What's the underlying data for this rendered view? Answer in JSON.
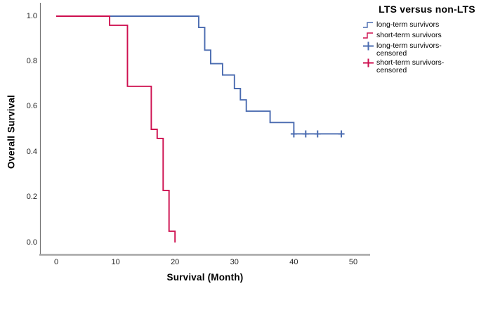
{
  "chart_data": {
    "type": "line",
    "subtype": "kaplan_meier_step",
    "title": "LTS versus non-LTS",
    "xlabel": "Survival (Month)",
    "ylabel": "Overall Survival",
    "xlim": [
      0,
      50
    ],
    "ylim": [
      0.0,
      1.0
    ],
    "xticks": [
      "0",
      "10",
      "20",
      "30",
      "40",
      "50"
    ],
    "yticks": [
      "1.0",
      "0.8",
      "0.6",
      "0.4",
      "0.2",
      "0.0"
    ],
    "grid": false,
    "legend_position": "top-right",
    "series": [
      {
        "name": "long-term survivors",
        "color": "#4A6BB0",
        "steps": [
          [
            0,
            1.0
          ],
          [
            24,
            0.95
          ],
          [
            25,
            0.85
          ],
          [
            26,
            0.79
          ],
          [
            28,
            0.74
          ],
          [
            30,
            0.68
          ],
          [
            31,
            0.63
          ],
          [
            32,
            0.58
          ],
          [
            36,
            0.53
          ],
          [
            40,
            0.48
          ]
        ],
        "end_x": 48.4,
        "censored": [
          [
            40,
            0.48
          ],
          [
            42,
            0.48
          ],
          [
            44,
            0.48
          ],
          [
            48,
            0.48
          ]
        ]
      },
      {
        "name": "short-term survivors",
        "color": "#CE0F4F",
        "steps": [
          [
            0,
            1.0
          ],
          [
            9,
            0.96
          ],
          [
            12,
            0.69
          ],
          [
            16,
            0.5
          ],
          [
            17,
            0.46
          ],
          [
            18,
            0.23
          ],
          [
            19,
            0.05
          ],
          [
            20,
            0.0
          ]
        ],
        "end_x": 20,
        "censored": []
      }
    ]
  },
  "legend": {
    "title": "LTS versus non-LTS",
    "items": [
      {
        "marker": "step-icon",
        "color": "#4A6BB0",
        "lines": [
          "long-term survivors"
        ]
      },
      {
        "marker": "step-icon",
        "color": "#CE0F4F",
        "lines": [
          "short-term survivors"
        ]
      },
      {
        "marker": "cross-icon",
        "color": "#4A6BB0",
        "lines": [
          "long-term survivors-",
          "censored"
        ]
      },
      {
        "marker": "cross-icon",
        "color": "#CE0F4F",
        "lines": [
          "short-term survivors-",
          "censored"
        ]
      }
    ]
  },
  "colors": {
    "long_term": "#4A6BB0",
    "short_term": "#CE0F4F",
    "y_axis_line": "#737373",
    "x_axis_line": "#A6A6A6",
    "text": "#1A1A1A",
    "background": "#FFFFFF"
  }
}
